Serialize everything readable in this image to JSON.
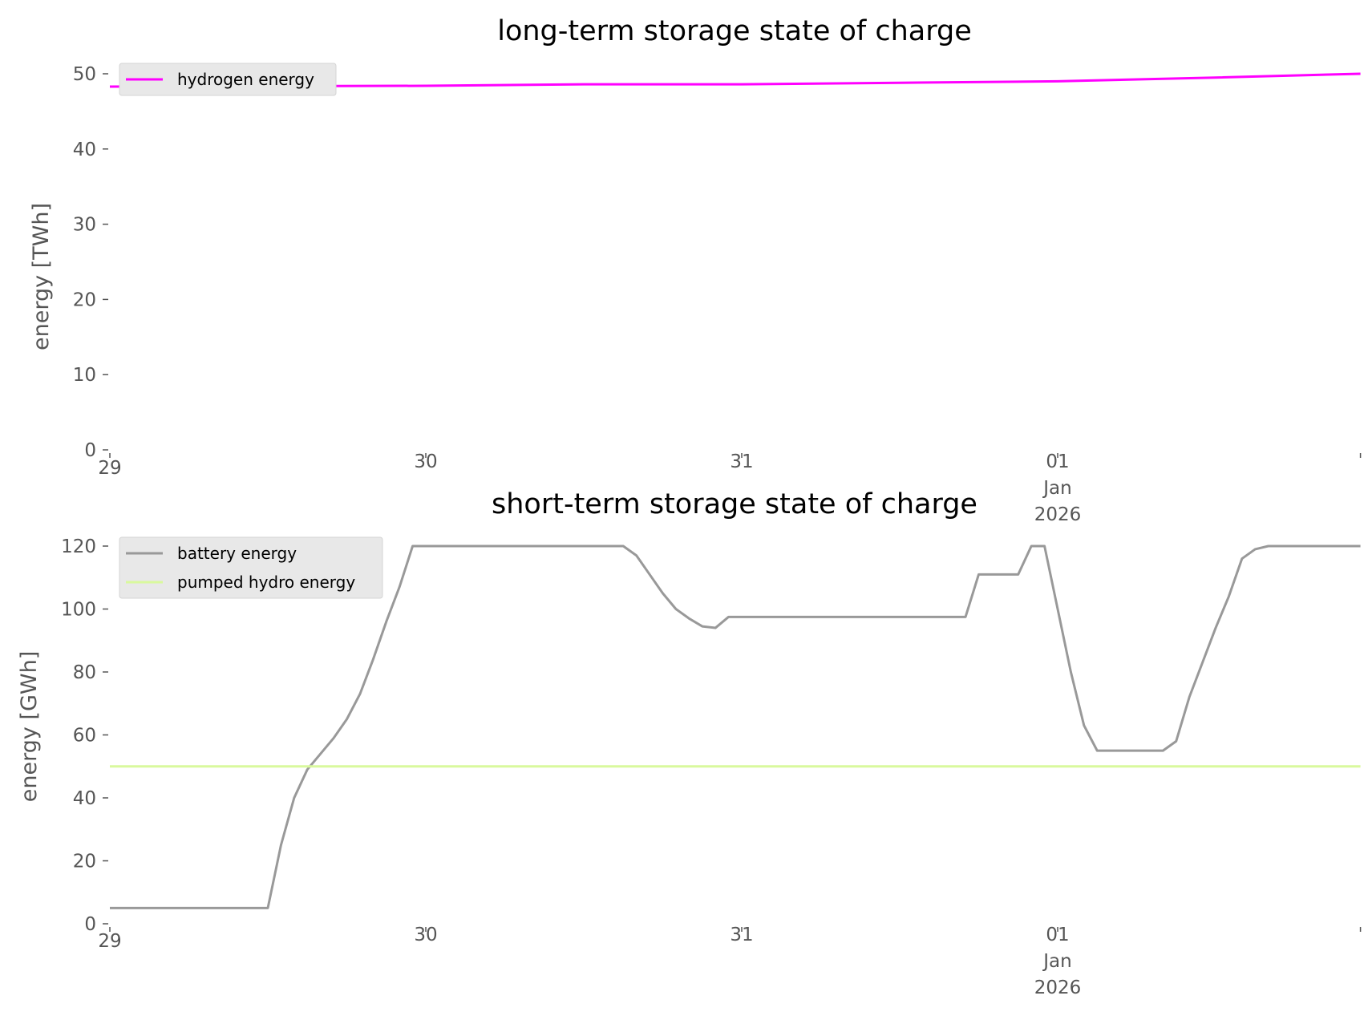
{
  "chart_data": [
    {
      "type": "line",
      "title": "long-term storage state of charge",
      "xlabel": "",
      "ylabel": "energy [TWh]",
      "x_start": "2025-12-29 00:00",
      "x_step_hours": 1,
      "x_tick_labels": [
        [
          "29"
        ],
        [
          "30"
        ],
        [
          "31"
        ],
        [
          "01",
          "Jan",
          "2026"
        ]
      ],
      "y_ticks": [
        0,
        10,
        20,
        30,
        40,
        50
      ],
      "ylim": [
        0,
        50.5
      ],
      "grid": false,
      "legend_position": "top-left",
      "series": [
        {
          "name": "hydrogen energy",
          "color": "#ff00ff",
          "keypoints": [
            [
              0,
              48.3
            ],
            [
              24,
              48.4
            ],
            [
              36,
              48.6
            ],
            [
              48,
              48.6
            ],
            [
              60,
              48.8
            ],
            [
              72,
              49.0
            ],
            [
              84,
              49.5
            ],
            [
              95,
              50.0
            ]
          ]
        }
      ]
    },
    {
      "type": "line",
      "title": "short-term storage state of charge",
      "xlabel": "",
      "ylabel": "energy [GWh]",
      "x_start": "2025-12-29 00:00",
      "x_step_hours": 1,
      "x_tick_labels": [
        [
          "29"
        ],
        [
          "30"
        ],
        [
          "31"
        ],
        [
          "01",
          "Jan",
          "2026"
        ]
      ],
      "y_ticks": [
        0,
        20,
        40,
        60,
        80,
        100,
        120
      ],
      "ylim": [
        0,
        121
      ],
      "grid": false,
      "legend_position": "top-left",
      "series": [
        {
          "name": "battery energy",
          "color": "#999999",
          "values": [
            5,
            5,
            5,
            5,
            5,
            5,
            5,
            5,
            5,
            5,
            5,
            5,
            5,
            25,
            40,
            49,
            54,
            59,
            65,
            73,
            84,
            96,
            107,
            120,
            120,
            120,
            120,
            120,
            120,
            120,
            120,
            120,
            120,
            120,
            120,
            120,
            120,
            120,
            120,
            120,
            117,
            111,
            105,
            100,
            97,
            94.5,
            94,
            97.5,
            97.5,
            97.5,
            97.5,
            97.5,
            97.5,
            97.5,
            97.5,
            97.5,
            97.5,
            97.5,
            97.5,
            97.5,
            97.5,
            97.5,
            97.5,
            97.5,
            97.5,
            97.5,
            111,
            111,
            111,
            111,
            120,
            120,
            100,
            80,
            63,
            55,
            55,
            55,
            55,
            55,
            55,
            58,
            72,
            83,
            94,
            104,
            116,
            119,
            120,
            120,
            120,
            120,
            120,
            120,
            120,
            120
          ]
        },
        {
          "name": "pumped hydro energy",
          "color": "#d9f99d",
          "values": [
            50
          ]
        }
      ]
    }
  ]
}
